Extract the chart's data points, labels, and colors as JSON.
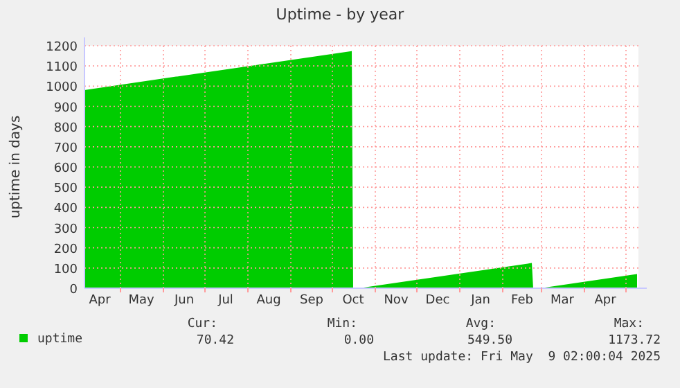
{
  "chart_data": {
    "type": "area",
    "title": "Uptime - by year",
    "ylabel": "uptime in days",
    "x": [
      "2024-04-05",
      "2024-10-15",
      "2024-10-16",
      "2024-10-20",
      "2025-02-22",
      "2025-02-23",
      "2025-02-28",
      "2025-05-09"
    ],
    "series": [
      {
        "name": "uptime",
        "color": "#00cc00",
        "values": [
          981,
          1173.72,
          0,
          0,
          125,
          0,
          0,
          70.42
        ]
      }
    ],
    "xlim": [
      "2024-04-05",
      "2025-05-10"
    ],
    "xticks": [
      {
        "value": "2024-04-16",
        "label": "Apr"
      },
      {
        "value": "2024-05-01",
        "label": null
      },
      {
        "value": "2024-05-16",
        "label": "May"
      },
      {
        "value": "2024-06-01",
        "label": null
      },
      {
        "value": "2024-06-16",
        "label": "Jun"
      },
      {
        "value": "2024-07-01",
        "label": null
      },
      {
        "value": "2024-07-16",
        "label": "Jul"
      },
      {
        "value": "2024-08-01",
        "label": null
      },
      {
        "value": "2024-08-16",
        "label": "Aug"
      },
      {
        "value": "2024-09-01",
        "label": null
      },
      {
        "value": "2024-09-16",
        "label": "Sep"
      },
      {
        "value": "2024-10-01",
        "label": null
      },
      {
        "value": "2024-10-16",
        "label": "Oct"
      },
      {
        "value": "2024-11-01",
        "label": null
      },
      {
        "value": "2024-11-16",
        "label": "Nov"
      },
      {
        "value": "2024-12-01",
        "label": null
      },
      {
        "value": "2024-12-16",
        "label": "Dec"
      },
      {
        "value": "2025-01-01",
        "label": null
      },
      {
        "value": "2025-01-16",
        "label": "Jan"
      },
      {
        "value": "2025-02-01",
        "label": null
      },
      {
        "value": "2025-02-15",
        "label": "Feb"
      },
      {
        "value": "2025-03-01",
        "label": null
      },
      {
        "value": "2025-03-16",
        "label": "Mar"
      },
      {
        "value": "2025-04-01",
        "label": null
      },
      {
        "value": "2025-04-16",
        "label": "Apr"
      },
      {
        "value": "2025-05-01",
        "label": null
      }
    ],
    "ylim": [
      0,
      1200
    ],
    "yticks": [
      0,
      100,
      200,
      300,
      400,
      500,
      600,
      700,
      800,
      900,
      1000,
      1100,
      1200
    ],
    "grid": true,
    "legend": "bottom",
    "annotations": [
      "Cur:",
      "70.42",
      "Min:",
      "0.00",
      "Avg:",
      "549.50",
      "Max:",
      "1173.72",
      "Last update: Fri May  9 02:00:04 2025"
    ]
  }
}
